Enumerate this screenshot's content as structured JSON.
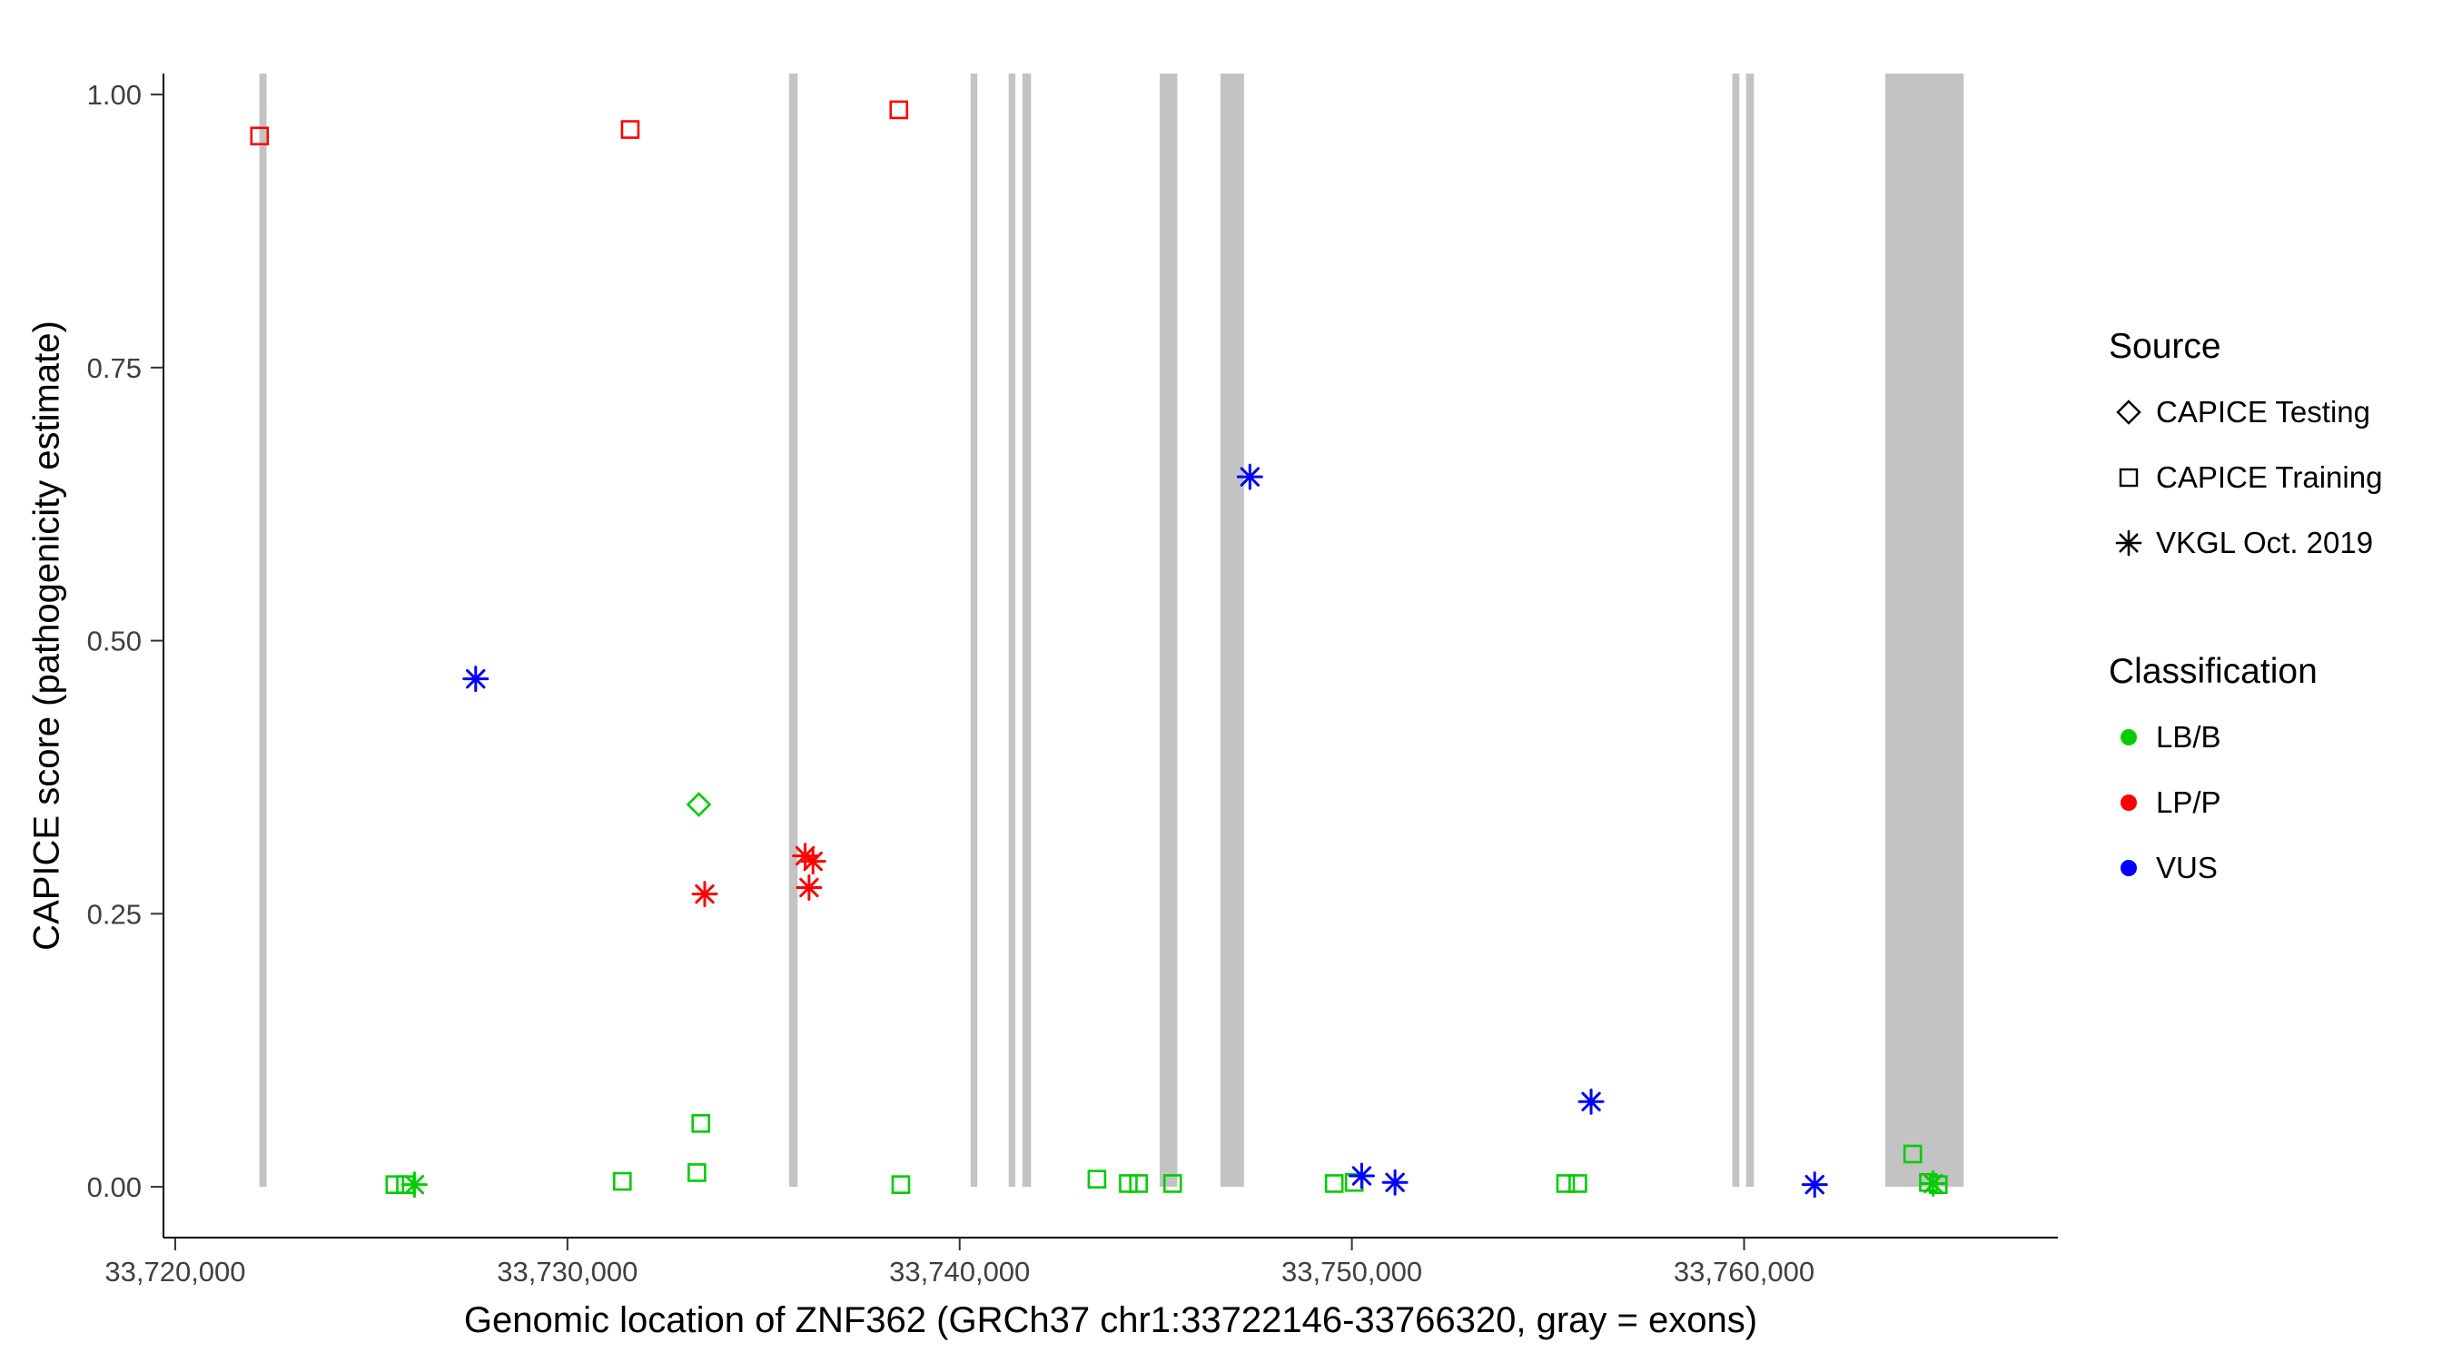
{
  "figure": {
    "x_axis_title": "Genomic location of ZNF362 (GRCh37 chr1:33722146-33766320, gray = exons)",
    "y_axis_title": "CAPICE score (pathogenicity estimate)"
  },
  "legend": {
    "source": {
      "title": "Source",
      "items": [
        {
          "label": "CAPICE Testing",
          "shape": "diamond"
        },
        {
          "label": "CAPICE Training",
          "shape": "square"
        },
        {
          "label": "VKGL Oct. 2019",
          "shape": "asterisk"
        }
      ]
    },
    "classification": {
      "title": "Classification",
      "items": [
        {
          "label": "LB/B",
          "color": "#00CC00"
        },
        {
          "label": "LP/P",
          "color": "#FF0000"
        },
        {
          "label": "VUS",
          "color": "#0000FF"
        }
      ]
    }
  },
  "chart_data": {
    "type": "scatter",
    "title": "",
    "xlabel": "Genomic location of ZNF362 (GRCh37 chr1:33722146-33766320, gray = exons)",
    "ylabel": "CAPICE score (pathogenicity estimate)",
    "xlim": [
      33719700,
      33768000
    ],
    "ylim": [
      -0.0465,
      1.0192
    ],
    "grid": false,
    "legend_position": "right",
    "x_ticks": [
      {
        "value": 33720000,
        "label": "33,720,000"
      },
      {
        "value": 33730000,
        "label": "33,730,000"
      },
      {
        "value": 33740000,
        "label": "33,740,000"
      },
      {
        "value": 33750000,
        "label": "33,750,000"
      },
      {
        "value": 33760000,
        "label": "33,760,000"
      }
    ],
    "y_ticks": [
      {
        "value": 0.0,
        "label": "0.00"
      },
      {
        "value": 0.25,
        "label": "0.25"
      },
      {
        "value": 0.5,
        "label": "0.50"
      },
      {
        "value": 0.75,
        "label": "0.75"
      },
      {
        "value": 1.0,
        "label": "1.00"
      }
    ],
    "exon_color": "#C3C3C3",
    "exons": [
      [
        33722146,
        33722330
      ],
      [
        33735650,
        33735870
      ],
      [
        33740280,
        33740450
      ],
      [
        33741250,
        33741420
      ],
      [
        33741600,
        33741820
      ],
      [
        33745100,
        33745550
      ],
      [
        33746650,
        33747250
      ],
      [
        33759700,
        33759880
      ],
      [
        33760050,
        33760250
      ],
      [
        33763600,
        33765600
      ]
    ],
    "colors": {
      "LB/B": "#00CC00",
      "LP/P": "#FF0000",
      "VUS": "#0000FF"
    },
    "shapes": {
      "CAPICE Testing": "diamond",
      "CAPICE Training": "square",
      "VKGL Oct. 2019": "asterisk"
    },
    "points": [
      {
        "x": 33725600,
        "y": 0.002,
        "source": "CAPICE Training",
        "classification": "LB/B"
      },
      {
        "x": 33725870,
        "y": 0.002,
        "source": "CAPICE Training",
        "classification": "LB/B"
      },
      {
        "x": 33731400,
        "y": 0.005,
        "source": "CAPICE Training",
        "classification": "LB/B"
      },
      {
        "x": 33733300,
        "y": 0.013,
        "source": "CAPICE Training",
        "classification": "LB/B"
      },
      {
        "x": 33733400,
        "y": 0.058,
        "source": "CAPICE Training",
        "classification": "LB/B"
      },
      {
        "x": 33738500,
        "y": 0.002,
        "source": "CAPICE Training",
        "classification": "LB/B"
      },
      {
        "x": 33743500,
        "y": 0.007,
        "source": "CAPICE Training",
        "classification": "LB/B"
      },
      {
        "x": 33744300,
        "y": 0.003,
        "source": "CAPICE Training",
        "classification": "LB/B"
      },
      {
        "x": 33744560,
        "y": 0.003,
        "source": "CAPICE Training",
        "classification": "LB/B"
      },
      {
        "x": 33745430,
        "y": 0.003,
        "source": "CAPICE Training",
        "classification": "LB/B"
      },
      {
        "x": 33749550,
        "y": 0.003,
        "source": "CAPICE Training",
        "classification": "LB/B"
      },
      {
        "x": 33750060,
        "y": 0.004,
        "source": "CAPICE Training",
        "classification": "LB/B"
      },
      {
        "x": 33755450,
        "y": 0.003,
        "source": "CAPICE Training",
        "classification": "LB/B"
      },
      {
        "x": 33755760,
        "y": 0.003,
        "source": "CAPICE Training",
        "classification": "LB/B"
      },
      {
        "x": 33764300,
        "y": 0.03,
        "source": "CAPICE Training",
        "classification": "LB/B"
      },
      {
        "x": 33764700,
        "y": 0.004,
        "source": "CAPICE Training",
        "classification": "LB/B"
      },
      {
        "x": 33764950,
        "y": 0.002,
        "source": "CAPICE Training",
        "classification": "LB/B"
      },
      {
        "x": 33722150,
        "y": 0.962,
        "source": "CAPICE Training",
        "classification": "LP/P"
      },
      {
        "x": 33731600,
        "y": 0.968,
        "source": "CAPICE Training",
        "classification": "LP/P"
      },
      {
        "x": 33738450,
        "y": 0.986,
        "source": "CAPICE Training",
        "classification": "LP/P"
      },
      {
        "x": 33733350,
        "y": 0.35,
        "source": "CAPICE Testing",
        "classification": "LB/B"
      },
      {
        "x": 33726100,
        "y": 0.002,
        "source": "VKGL Oct. 2019",
        "classification": "LB/B"
      },
      {
        "x": 33764820,
        "y": 0.003,
        "source": "VKGL Oct. 2019",
        "classification": "LB/B"
      },
      {
        "x": 33733500,
        "y": 0.268,
        "source": "VKGL Oct. 2019",
        "classification": "LP/P"
      },
      {
        "x": 33736060,
        "y": 0.303,
        "source": "VKGL Oct. 2019",
        "classification": "LP/P"
      },
      {
        "x": 33736260,
        "y": 0.298,
        "source": "VKGL Oct. 2019",
        "classification": "LP/P"
      },
      {
        "x": 33736160,
        "y": 0.274,
        "source": "VKGL Oct. 2019",
        "classification": "LP/P"
      },
      {
        "x": 33727660,
        "y": 0.465,
        "source": "VKGL Oct. 2019",
        "classification": "VUS"
      },
      {
        "x": 33747400,
        "y": 0.65,
        "source": "VKGL Oct. 2019",
        "classification": "VUS"
      },
      {
        "x": 33750250,
        "y": 0.01,
        "source": "VKGL Oct. 2019",
        "classification": "VUS"
      },
      {
        "x": 33751100,
        "y": 0.004,
        "source": "VKGL Oct. 2019",
        "classification": "VUS"
      },
      {
        "x": 33756100,
        "y": 0.078,
        "source": "VKGL Oct. 2019",
        "classification": "VUS"
      },
      {
        "x": 33761800,
        "y": 0.002,
        "source": "VKGL Oct. 2019",
        "classification": "VUS"
      }
    ]
  }
}
